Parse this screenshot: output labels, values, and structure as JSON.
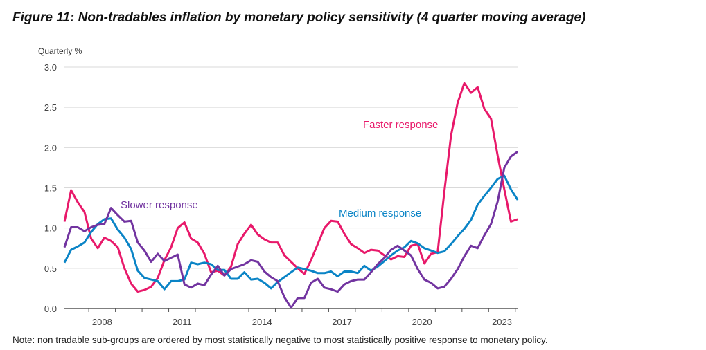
{
  "title": "Figure 11: Non-tradables inflation by monetary policy sensitivity (4 quarter moving average)",
  "note": "Note: non tradable sub-groups are ordered by most statistically negative to most statistically positive response to monetary policy.",
  "chart_data": {
    "type": "line",
    "ylabel": "Quarterly %",
    "ylim": [
      0,
      3.0
    ],
    "yticks": [
      "0.0",
      "0.5",
      "1.0",
      "1.5",
      "2.0",
      "2.5",
      "3.0"
    ],
    "xticks": [
      "2008",
      "2011",
      "2014",
      "2017",
      "2020",
      "2023"
    ],
    "x_start": "2007Q1",
    "x_end": "2024Q1",
    "frequency": "quarterly",
    "grid": "horizontal",
    "series": [
      {
        "name": "Faster response",
        "color": "#E8196A",
        "values": [
          1.08,
          1.47,
          1.32,
          1.2,
          0.87,
          0.75,
          0.88,
          0.84,
          0.76,
          0.5,
          0.31,
          0.21,
          0.23,
          0.27,
          0.38,
          0.6,
          0.76,
          1.0,
          1.07,
          0.87,
          0.82,
          0.68,
          0.45,
          0.47,
          0.41,
          0.52,
          0.8,
          0.93,
          1.04,
          0.92,
          0.86,
          0.82,
          0.82,
          0.66,
          0.58,
          0.5,
          0.43,
          0.6,
          0.8,
          1.0,
          1.09,
          1.08,
          0.93,
          0.8,
          0.75,
          0.69,
          0.73,
          0.72,
          0.66,
          0.61,
          0.65,
          0.64,
          0.78,
          0.8,
          0.56,
          0.68,
          0.7,
          1.45,
          2.15,
          2.56,
          2.8,
          2.68,
          2.75,
          2.48,
          2.36,
          1.9,
          1.48,
          1.08,
          1.11
        ]
      },
      {
        "name": "Medium response",
        "color": "#0A84C6",
        "values": [
          0.57,
          0.73,
          0.77,
          0.82,
          0.95,
          1.05,
          1.11,
          1.12,
          0.98,
          0.88,
          0.74,
          0.47,
          0.38,
          0.36,
          0.34,
          0.24,
          0.34,
          0.34,
          0.36,
          0.57,
          0.55,
          0.57,
          0.55,
          0.48,
          0.48,
          0.37,
          0.37,
          0.45,
          0.36,
          0.37,
          0.32,
          0.25,
          0.33,
          0.39,
          0.45,
          0.51,
          0.49,
          0.47,
          0.44,
          0.44,
          0.46,
          0.4,
          0.46,
          0.46,
          0.44,
          0.53,
          0.47,
          0.52,
          0.59,
          0.66,
          0.72,
          0.76,
          0.84,
          0.81,
          0.75,
          0.72,
          0.69,
          0.71,
          0.8,
          0.9,
          0.99,
          1.1,
          1.29,
          1.4,
          1.5,
          1.61,
          1.65,
          1.48,
          1.35
        ]
      },
      {
        "name": "Slower response",
        "color": "#7234A0",
        "values": [
          0.76,
          1.01,
          1.01,
          0.96,
          1.01,
          1.04,
          1.05,
          1.25,
          1.16,
          1.08,
          1.09,
          0.82,
          0.72,
          0.58,
          0.68,
          0.59,
          0.63,
          0.67,
          0.3,
          0.26,
          0.31,
          0.29,
          0.42,
          0.53,
          0.41,
          0.49,
          0.52,
          0.55,
          0.6,
          0.58,
          0.46,
          0.39,
          0.34,
          0.14,
          0.01,
          0.13,
          0.13,
          0.32,
          0.37,
          0.26,
          0.24,
          0.21,
          0.3,
          0.34,
          0.36,
          0.36,
          0.45,
          0.55,
          0.63,
          0.73,
          0.78,
          0.72,
          0.66,
          0.49,
          0.36,
          0.32,
          0.25,
          0.27,
          0.37,
          0.49,
          0.65,
          0.78,
          0.75,
          0.91,
          1.05,
          1.33,
          1.75,
          1.89,
          1.95
        ]
      }
    ]
  }
}
